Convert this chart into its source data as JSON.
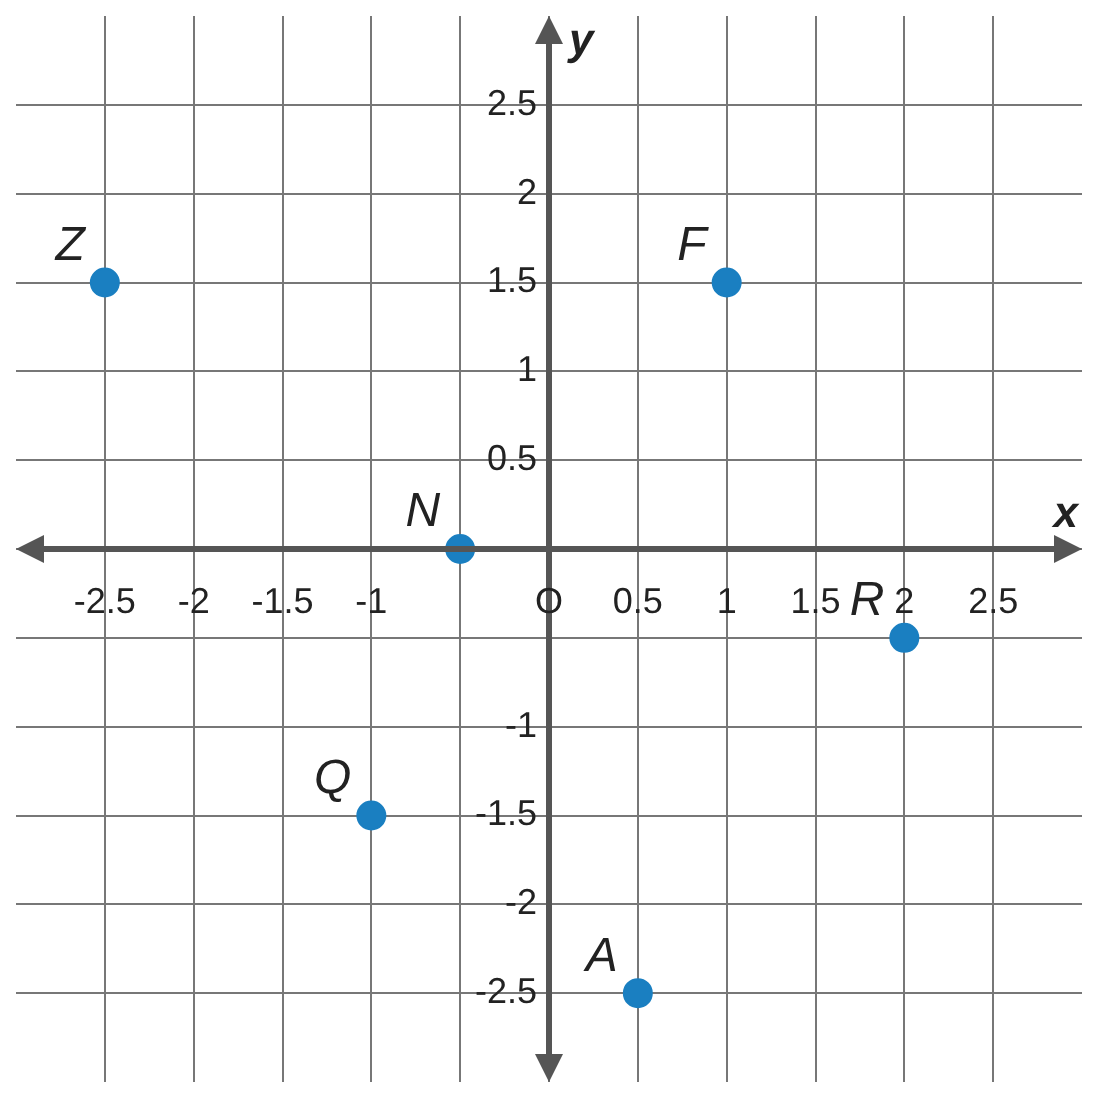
{
  "chart_data": {
    "type": "scatter",
    "xlabel": "x",
    "ylabel": "y",
    "marker": "circle",
    "grid": true,
    "legend": false,
    "xlim": [
      -3,
      3
    ],
    "ylim": [
      -3,
      3
    ],
    "xticks": [
      -2.5,
      -2,
      -1.5,
      -1,
      {
        "value": -0.5,
        "label": null
      },
      {
        "value": 0,
        "label": "O"
      },
      0.5,
      1,
      1.5,
      2,
      2.5
    ],
    "yticks": [
      -2.5,
      -2,
      -1.5,
      -1,
      {
        "value": -0.5,
        "label": null
      },
      {
        "value": 0,
        "label": null
      },
      0.5,
      1,
      1.5,
      2,
      2.5
    ],
    "series": [
      {
        "color": "#1a7fc1",
        "x": [
          -2.5,
          1,
          -0.5,
          -1,
          2,
          0.5
        ],
        "values": [
          1.5,
          1.5,
          0,
          -1.5,
          -0.5,
          -2.5
        ]
      }
    ],
    "annotations": [
      {
        "text": "Z",
        "x": -2.5,
        "y": 1.5
      },
      {
        "text": "F",
        "x": 1,
        "y": 1.5
      },
      {
        "text": "N",
        "x": -0.5,
        "y": 0
      },
      {
        "text": "Q",
        "x": -1,
        "y": -1.5
      },
      {
        "text": "R",
        "x": 2,
        "y": -0.5
      },
      {
        "text": "A",
        "x": 0.5,
        "y": -2.5
      }
    ]
  }
}
